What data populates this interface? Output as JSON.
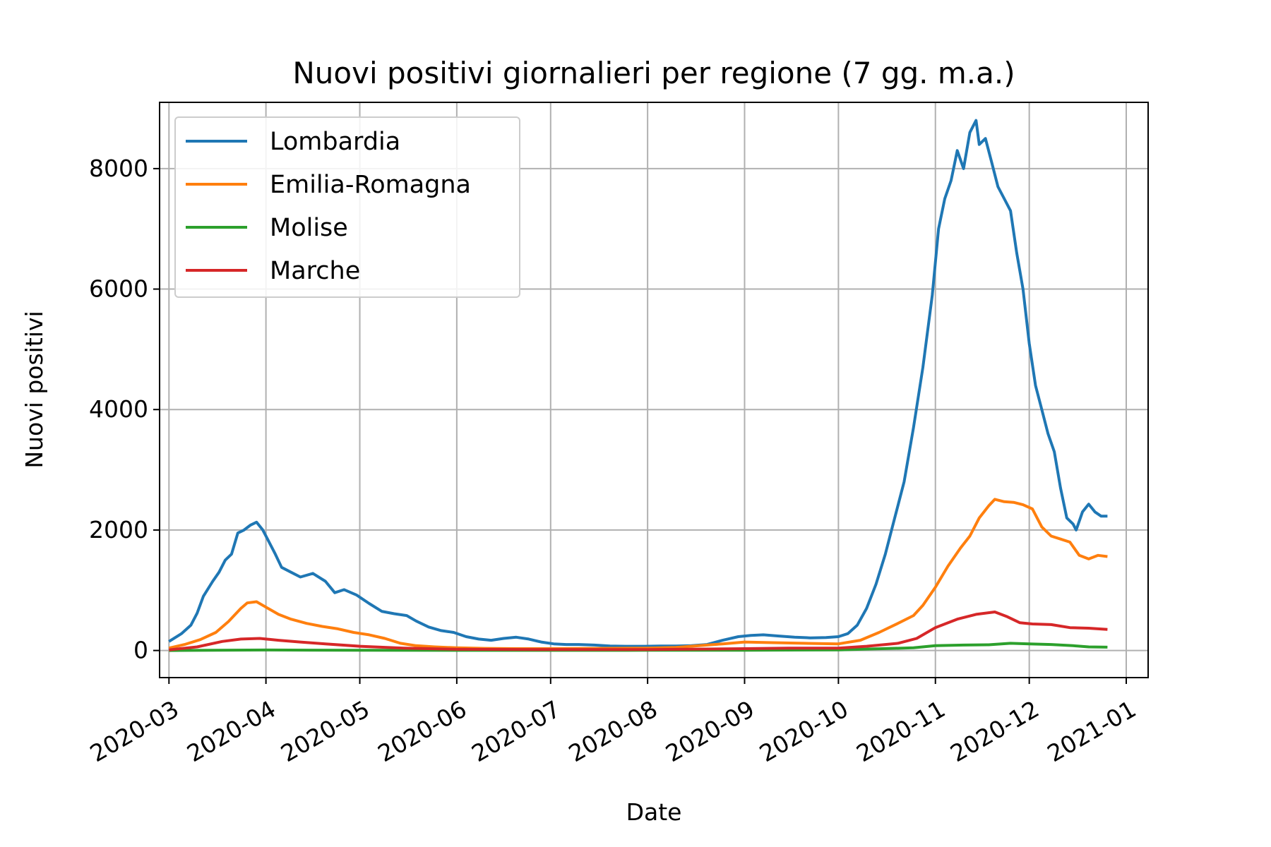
{
  "chart_data": {
    "type": "line",
    "title": "Nuovi positivi giornalieri per regione (7 gg. m.a.)",
    "xlabel": "Date",
    "ylabel": "Nuovi positivi",
    "x_type": "date",
    "xlim": [
      "2020-02-27",
      "2021-01-08"
    ],
    "ylim": [
      -450,
      9100
    ],
    "x_ticks": [
      "2020-03-01",
      "2020-04-01",
      "2020-05-01",
      "2020-06-01",
      "2020-07-01",
      "2020-08-01",
      "2020-09-01",
      "2020-10-01",
      "2020-11-01",
      "2020-12-01",
      "2021-01-01"
    ],
    "x_tick_labels": [
      "2020-03",
      "2020-04",
      "2020-05",
      "2020-06",
      "2020-07",
      "2020-08",
      "2020-09",
      "2020-10",
      "2020-11",
      "2020-12",
      "2021-01"
    ],
    "y_ticks": [
      0,
      2000,
      4000,
      6000,
      8000
    ],
    "y_tick_labels": [
      "0",
      "2000",
      "4000",
      "6000",
      "8000"
    ],
    "grid": true,
    "legend_position": "top-left",
    "series": [
      {
        "name": "Lombardia",
        "color": "#1f77b4",
        "points": [
          [
            "2020-03-01",
            150
          ],
          [
            "2020-03-05",
            280
          ],
          [
            "2020-03-08",
            420
          ],
          [
            "2020-03-10",
            620
          ],
          [
            "2020-03-12",
            900
          ],
          [
            "2020-03-15",
            1150
          ],
          [
            "2020-03-17",
            1300
          ],
          [
            "2020-03-19",
            1500
          ],
          [
            "2020-03-21",
            1600
          ],
          [
            "2020-03-23",
            1950
          ],
          [
            "2020-03-25",
            2000
          ],
          [
            "2020-03-27",
            2080
          ],
          [
            "2020-03-29",
            2130
          ],
          [
            "2020-03-31",
            2000
          ],
          [
            "2020-04-02",
            1800
          ],
          [
            "2020-04-04",
            1600
          ],
          [
            "2020-04-06",
            1380
          ],
          [
            "2020-04-09",
            1300
          ],
          [
            "2020-04-12",
            1220
          ],
          [
            "2020-04-16",
            1280
          ],
          [
            "2020-04-20",
            1150
          ],
          [
            "2020-04-23",
            960
          ],
          [
            "2020-04-26",
            1010
          ],
          [
            "2020-04-30",
            920
          ],
          [
            "2020-05-04",
            780
          ],
          [
            "2020-05-08",
            650
          ],
          [
            "2020-05-12",
            610
          ],
          [
            "2020-05-16",
            580
          ],
          [
            "2020-05-19",
            490
          ],
          [
            "2020-05-23",
            390
          ],
          [
            "2020-05-27",
            330
          ],
          [
            "2020-05-31",
            300
          ],
          [
            "2020-06-04",
            230
          ],
          [
            "2020-06-08",
            190
          ],
          [
            "2020-06-12",
            170
          ],
          [
            "2020-06-16",
            200
          ],
          [
            "2020-06-20",
            220
          ],
          [
            "2020-06-24",
            190
          ],
          [
            "2020-06-28",
            140
          ],
          [
            "2020-07-02",
            110
          ],
          [
            "2020-07-06",
            100
          ],
          [
            "2020-07-10",
            100
          ],
          [
            "2020-07-15",
            90
          ],
          [
            "2020-07-20",
            75
          ],
          [
            "2020-07-25",
            70
          ],
          [
            "2020-07-31",
            70
          ],
          [
            "2020-08-05",
            75
          ],
          [
            "2020-08-10",
            75
          ],
          [
            "2020-08-15",
            80
          ],
          [
            "2020-08-20",
            100
          ],
          [
            "2020-08-25",
            170
          ],
          [
            "2020-08-30",
            230
          ],
          [
            "2020-09-03",
            250
          ],
          [
            "2020-09-07",
            260
          ],
          [
            "2020-09-12",
            240
          ],
          [
            "2020-09-17",
            220
          ],
          [
            "2020-09-22",
            210
          ],
          [
            "2020-09-27",
            215
          ],
          [
            "2020-10-01",
            230
          ],
          [
            "2020-10-04",
            280
          ],
          [
            "2020-10-07",
            420
          ],
          [
            "2020-10-10",
            700
          ],
          [
            "2020-10-13",
            1100
          ],
          [
            "2020-10-16",
            1600
          ],
          [
            "2020-10-19",
            2200
          ],
          [
            "2020-10-22",
            2800
          ],
          [
            "2020-10-25",
            3700
          ],
          [
            "2020-10-28",
            4700
          ],
          [
            "2020-10-31",
            5900
          ],
          [
            "2020-11-02",
            7000
          ],
          [
            "2020-11-04",
            7500
          ],
          [
            "2020-11-06",
            7800
          ],
          [
            "2020-11-08",
            8300
          ],
          [
            "2020-11-10",
            8000
          ],
          [
            "2020-11-12",
            8600
          ],
          [
            "2020-11-14",
            8800
          ],
          [
            "2020-11-15",
            8400
          ],
          [
            "2020-11-17",
            8500
          ],
          [
            "2020-11-19",
            8100
          ],
          [
            "2020-11-21",
            7700
          ],
          [
            "2020-11-23",
            7500
          ],
          [
            "2020-11-25",
            7300
          ],
          [
            "2020-11-27",
            6600
          ],
          [
            "2020-11-29",
            6000
          ],
          [
            "2020-12-01",
            5100
          ],
          [
            "2020-12-03",
            4400
          ],
          [
            "2020-12-05",
            4000
          ],
          [
            "2020-12-07",
            3600
          ],
          [
            "2020-12-09",
            3300
          ],
          [
            "2020-12-11",
            2700
          ],
          [
            "2020-12-13",
            2200
          ],
          [
            "2020-12-15",
            2100
          ],
          [
            "2020-12-16",
            2000
          ],
          [
            "2020-12-18",
            2300
          ],
          [
            "2020-12-20",
            2430
          ],
          [
            "2020-12-22",
            2300
          ],
          [
            "2020-12-24",
            2230
          ],
          [
            "2020-12-26",
            2230
          ]
        ]
      },
      {
        "name": "Emilia-Romagna",
        "color": "#ff7f0e",
        "points": [
          [
            "2020-03-01",
            40
          ],
          [
            "2020-03-06",
            100
          ],
          [
            "2020-03-11",
            180
          ],
          [
            "2020-03-16",
            300
          ],
          [
            "2020-03-20",
            480
          ],
          [
            "2020-03-24",
            700
          ],
          [
            "2020-03-26",
            790
          ],
          [
            "2020-03-29",
            810
          ],
          [
            "2020-04-01",
            720
          ],
          [
            "2020-04-05",
            600
          ],
          [
            "2020-04-09",
            520
          ],
          [
            "2020-04-14",
            450
          ],
          [
            "2020-04-19",
            400
          ],
          [
            "2020-04-24",
            360
          ],
          [
            "2020-04-29",
            300
          ],
          [
            "2020-05-04",
            260
          ],
          [
            "2020-05-09",
            200
          ],
          [
            "2020-05-14",
            120
          ],
          [
            "2020-05-19",
            80
          ],
          [
            "2020-05-25",
            60
          ],
          [
            "2020-06-01",
            45
          ],
          [
            "2020-06-10",
            35
          ],
          [
            "2020-06-20",
            30
          ],
          [
            "2020-07-01",
            30
          ],
          [
            "2020-07-15",
            35
          ],
          [
            "2020-08-01",
            40
          ],
          [
            "2020-08-10",
            50
          ],
          [
            "2020-08-20",
            90
          ],
          [
            "2020-08-25",
            110
          ],
          [
            "2020-09-01",
            140
          ],
          [
            "2020-09-10",
            130
          ],
          [
            "2020-09-20",
            120
          ],
          [
            "2020-10-01",
            110
          ],
          [
            "2020-10-08",
            170
          ],
          [
            "2020-10-14",
            300
          ],
          [
            "2020-10-20",
            450
          ],
          [
            "2020-10-25",
            580
          ],
          [
            "2020-10-28",
            750
          ],
          [
            "2020-11-01",
            1050
          ],
          [
            "2020-11-05",
            1400
          ],
          [
            "2020-11-09",
            1700
          ],
          [
            "2020-11-12",
            1900
          ],
          [
            "2020-11-15",
            2200
          ],
          [
            "2020-11-18",
            2400
          ],
          [
            "2020-11-20",
            2510
          ],
          [
            "2020-11-23",
            2470
          ],
          [
            "2020-11-26",
            2460
          ],
          [
            "2020-11-29",
            2420
          ],
          [
            "2020-12-02",
            2350
          ],
          [
            "2020-12-05",
            2050
          ],
          [
            "2020-12-08",
            1900
          ],
          [
            "2020-12-11",
            1850
          ],
          [
            "2020-12-14",
            1800
          ],
          [
            "2020-12-17",
            1580
          ],
          [
            "2020-12-20",
            1520
          ],
          [
            "2020-12-23",
            1580
          ],
          [
            "2020-12-26",
            1560
          ]
        ]
      },
      {
        "name": "Molise",
        "color": "#2ca02c",
        "points": [
          [
            "2020-03-01",
            0
          ],
          [
            "2020-03-15",
            3
          ],
          [
            "2020-04-01",
            8
          ],
          [
            "2020-04-15",
            6
          ],
          [
            "2020-05-01",
            4
          ],
          [
            "2020-06-01",
            2
          ],
          [
            "2020-07-01",
            2
          ],
          [
            "2020-08-01",
            3
          ],
          [
            "2020-09-01",
            5
          ],
          [
            "2020-10-01",
            10
          ],
          [
            "2020-10-15",
            30
          ],
          [
            "2020-10-25",
            45
          ],
          [
            "2020-11-01",
            80
          ],
          [
            "2020-11-10",
            90
          ],
          [
            "2020-11-18",
            95
          ],
          [
            "2020-11-25",
            120
          ],
          [
            "2020-12-01",
            110
          ],
          [
            "2020-12-08",
            100
          ],
          [
            "2020-12-15",
            80
          ],
          [
            "2020-12-20",
            60
          ],
          [
            "2020-12-26",
            55
          ]
        ]
      },
      {
        "name": "Marche",
        "color": "#d62728",
        "points": [
          [
            "2020-03-01",
            10
          ],
          [
            "2020-03-10",
            60
          ],
          [
            "2020-03-18",
            150
          ],
          [
            "2020-03-24",
            190
          ],
          [
            "2020-03-30",
            200
          ],
          [
            "2020-04-05",
            170
          ],
          [
            "2020-04-12",
            140
          ],
          [
            "2020-04-20",
            110
          ],
          [
            "2020-05-01",
            70
          ],
          [
            "2020-05-15",
            40
          ],
          [
            "2020-06-01",
            20
          ],
          [
            "2020-07-01",
            15
          ],
          [
            "2020-08-01",
            15
          ],
          [
            "2020-09-01",
            30
          ],
          [
            "2020-09-15",
            40
          ],
          [
            "2020-10-01",
            40
          ],
          [
            "2020-10-10",
            70
          ],
          [
            "2020-10-20",
            120
          ],
          [
            "2020-10-26",
            200
          ],
          [
            "2020-11-01",
            380
          ],
          [
            "2020-11-08",
            520
          ],
          [
            "2020-11-14",
            600
          ],
          [
            "2020-11-20",
            640
          ],
          [
            "2020-11-24",
            560
          ],
          [
            "2020-11-28",
            460
          ],
          [
            "2020-12-02",
            440
          ],
          [
            "2020-12-08",
            430
          ],
          [
            "2020-12-14",
            380
          ],
          [
            "2020-12-20",
            370
          ],
          [
            "2020-12-26",
            350
          ]
        ]
      }
    ]
  }
}
